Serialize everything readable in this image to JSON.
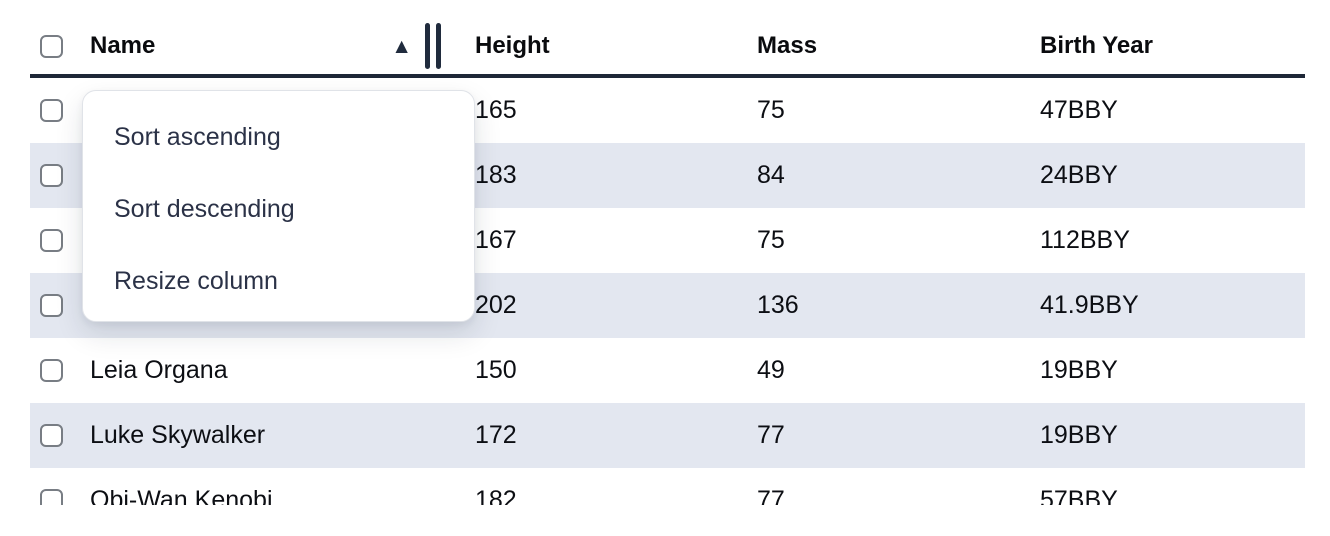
{
  "table": {
    "columns": [
      {
        "label": "Name"
      },
      {
        "label": "Height"
      },
      {
        "label": "Mass"
      },
      {
        "label": "Birth Year"
      }
    ],
    "sort": {
      "column": "Name",
      "direction": "ascending"
    },
    "rows": [
      {
        "name": "",
        "height": "165",
        "mass": "75",
        "birth_year": "47BBY"
      },
      {
        "name": "",
        "height": "183",
        "mass": "84",
        "birth_year": "24BBY"
      },
      {
        "name": "",
        "height": "167",
        "mass": "75",
        "birth_year": "112BBY"
      },
      {
        "name": "",
        "height": "202",
        "mass": "136",
        "birth_year": "41.9BBY"
      },
      {
        "name": "Leia Organa",
        "height": "150",
        "mass": "49",
        "birth_year": "19BBY"
      },
      {
        "name": "Luke Skywalker",
        "height": "172",
        "mass": "77",
        "birth_year": "19BBY"
      },
      {
        "name": "Obi-Wan Kenobi",
        "height": "182",
        "mass": "77",
        "birth_year": "57BBY"
      }
    ]
  },
  "context_menu": {
    "items": [
      {
        "label": "Sort ascending"
      },
      {
        "label": "Sort descending"
      },
      {
        "label": "Resize column"
      }
    ]
  },
  "icons": {
    "sort_ascending_glyph": "▲"
  },
  "colors": {
    "stripe_row_bg": "#e3e7f0",
    "header_border": "#1e2737",
    "menu_text": "#2b3247",
    "cell_text": "#0c0e13",
    "header_text": "#0a0b0e",
    "checkbox_border": "#787d84",
    "icon_color": "#202b3d",
    "menu_bg": "#ffffff",
    "menu_border": "#e0e3e8",
    "page_bg": "#ffffff"
  }
}
